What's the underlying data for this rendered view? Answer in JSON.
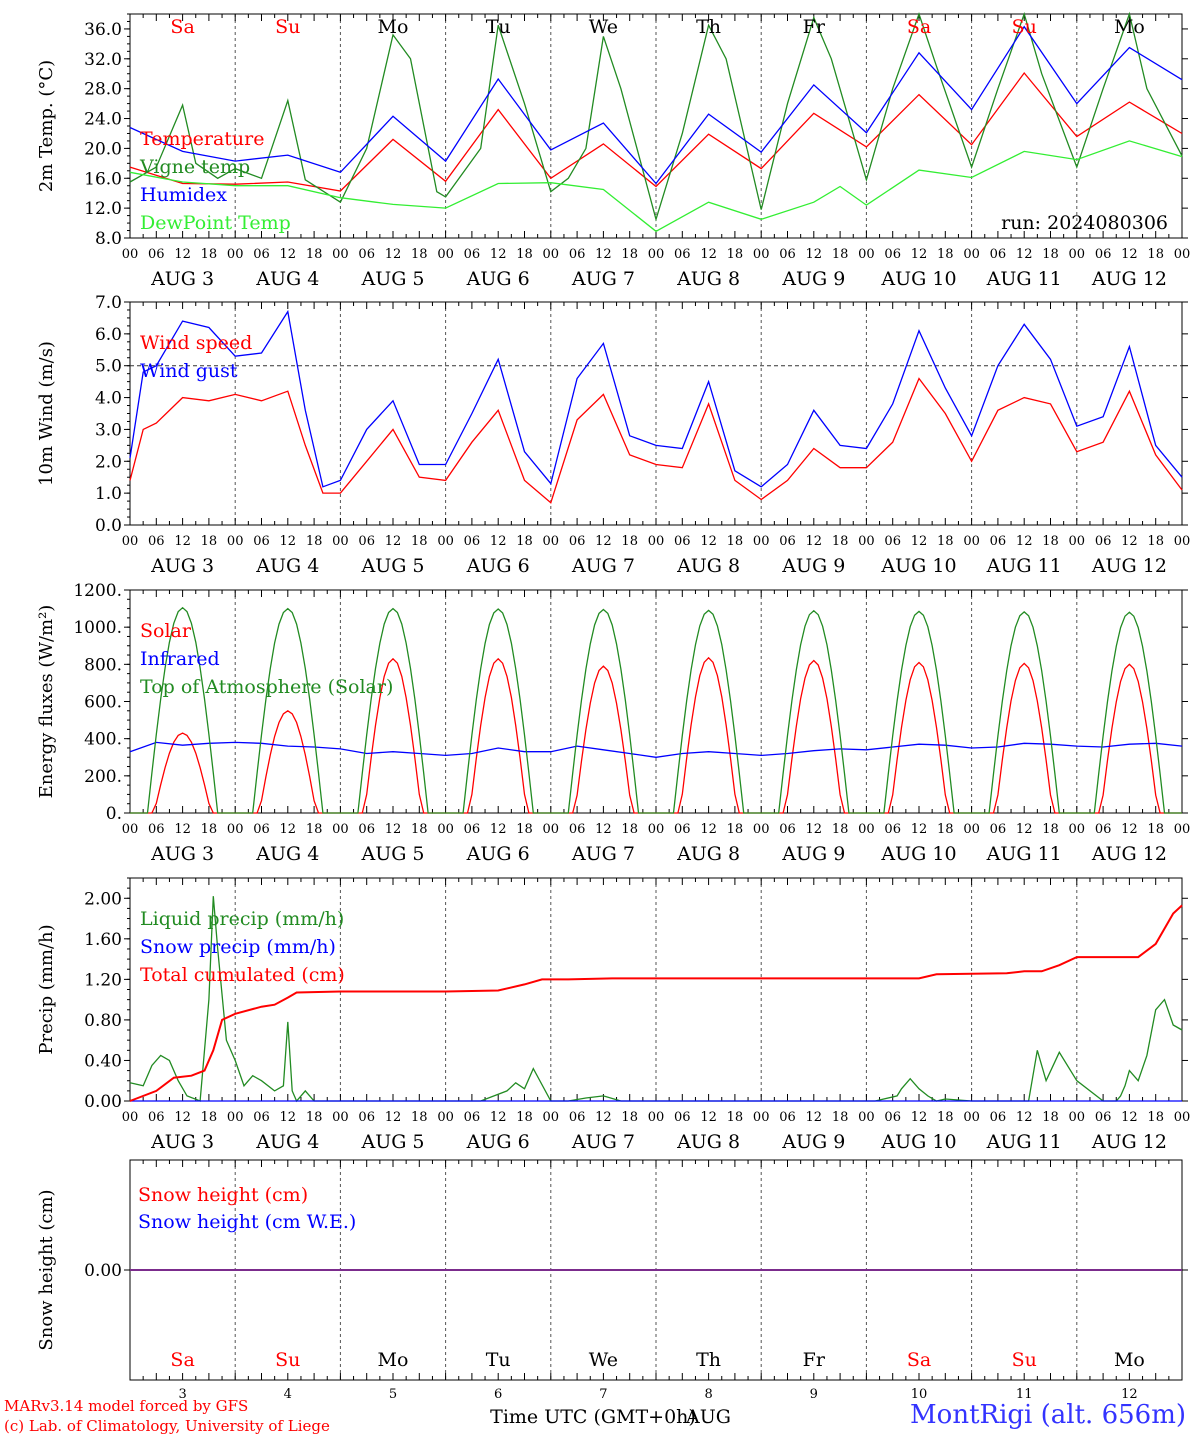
{
  "run_label": "run: 2024080306",
  "footer": {
    "model": "MARv3.14 model forced by GFS",
    "credit": "(c) Lab. of Climatology, University of Liege",
    "time_axis": "Time UTC (GMT+0h)",
    "month": "AUG",
    "station": "MontRigi (alt. 656m)"
  },
  "days": [
    {
      "weekday": "Sa",
      "date": "AUG  3",
      "num": "3",
      "weekend": true
    },
    {
      "weekday": "Su",
      "date": "AUG  4",
      "num": "4",
      "weekend": true
    },
    {
      "weekday": "Mo",
      "date": "AUG  5",
      "num": "5",
      "weekend": false
    },
    {
      "weekday": "Tu",
      "date": "AUG  6",
      "num": "6",
      "weekend": false
    },
    {
      "weekday": "We",
      "date": "AUG  7",
      "num": "7",
      "weekend": false
    },
    {
      "weekday": "Th",
      "date": "AUG  8",
      "num": "8",
      "weekend": false
    },
    {
      "weekday": "Fr",
      "date": "AUG  9",
      "num": "9",
      "weekend": false
    },
    {
      "weekday": "Sa",
      "date": "AUG 10",
      "num": "10",
      "weekend": true
    },
    {
      "weekday": "Su",
      "date": "AUG 11",
      "num": "11",
      "weekend": true
    },
    {
      "weekday": "Mo",
      "date": "AUG 12",
      "num": "12",
      "weekend": false
    }
  ],
  "hour_ticks": [
    "00",
    "06",
    "12",
    "18"
  ],
  "colors": {
    "red": "#ff0000",
    "green": "#228b22",
    "blue": "#0000ff",
    "lime": "#33ee33",
    "purple": "#7b2c8c",
    "weekday": "#000000"
  },
  "chart_data": [
    {
      "type": "line",
      "ylabel": "2m Temp. (°C)",
      "ylim": [
        8,
        38
      ],
      "yticks": [
        "8.0",
        "12.0",
        "16.0",
        "20.0",
        "24.0",
        "28.0",
        "32.0",
        "36.0"
      ],
      "x_unit": "hours since AUG 3 00 UTC",
      "series": [
        {
          "name": "Temperature",
          "color": "#ff0000",
          "x": [
            0,
            12,
            24,
            36,
            48,
            60,
            72,
            84,
            96,
            108,
            120,
            132,
            144,
            156,
            168,
            180,
            192,
            204,
            216,
            228,
            240
          ],
          "y": [
            17.5,
            15.3,
            15.2,
            15.5,
            14.3,
            21.2,
            15.6,
            25.2,
            16.0,
            20.6,
            14.9,
            21.9,
            17.3,
            24.7,
            20.2,
            27.2,
            20.5,
            30.1,
            21.6,
            26.2,
            22.0
          ]
        },
        {
          "name": "Vigne temp",
          "color": "#228b22",
          "x": [
            0,
            6,
            12,
            15,
            20,
            24,
            30,
            36,
            40,
            48,
            54,
            60,
            64,
            70,
            72,
            80,
            84,
            90,
            96,
            100,
            104,
            108,
            112,
            120,
            126,
            132,
            136,
            144,
            150,
            156,
            160,
            168,
            174,
            180,
            184,
            192,
            198,
            204,
            208,
            216,
            222,
            228,
            232,
            240
          ],
          "y": [
            15.5,
            17.5,
            25.8,
            18.0,
            16.0,
            17.3,
            16.0,
            26.4,
            15.8,
            12.8,
            20.0,
            35.2,
            32.0,
            14.2,
            13.5,
            20.0,
            36.5,
            26.0,
            14.2,
            16.0,
            20.0,
            35.0,
            28.0,
            10.5,
            22.0,
            36.5,
            32.0,
            11.8,
            26.0,
            37.5,
            32.0,
            15.8,
            28.0,
            38.0,
            31.0,
            17.5,
            28.0,
            38.0,
            30.0,
            17.5,
            28.0,
            38.5,
            28.0,
            19.0
          ]
        },
        {
          "name": "Humidex",
          "color": "#0000ff",
          "x": [
            0,
            12,
            24,
            36,
            48,
            60,
            72,
            84,
            96,
            108,
            120,
            132,
            144,
            156,
            168,
            180,
            192,
            204,
            216,
            228,
            240
          ],
          "y": [
            22.8,
            19.6,
            18.3,
            19.1,
            16.8,
            24.3,
            18.3,
            29.3,
            19.8,
            23.4,
            15.3,
            24.6,
            19.5,
            28.5,
            22.1,
            32.8,
            25.2,
            36.3,
            26.0,
            33.5,
            29.2
          ]
        },
        {
          "name": "DewPoint Temp",
          "color": "#33ee33",
          "x": [
            0,
            12,
            24,
            36,
            48,
            56,
            60,
            72,
            84,
            96,
            108,
            120,
            132,
            144,
            156,
            162,
            168,
            180,
            192,
            204,
            216,
            228,
            240
          ],
          "y": [
            16.8,
            15.5,
            15.0,
            15.0,
            13.4,
            12.8,
            12.5,
            12.0,
            15.3,
            15.4,
            14.5,
            8.9,
            12.8,
            10.5,
            12.8,
            14.9,
            12.4,
            17.1,
            16.1,
            19.6,
            18.5,
            21.0,
            18.9
          ]
        }
      ]
    },
    {
      "type": "line",
      "ylabel": "10m Wind (m/s)",
      "ylim": [
        0,
        7
      ],
      "yticks": [
        "0.0",
        "1.0",
        "2.0",
        "3.0",
        "4.0",
        "5.0",
        "6.0",
        "7.0"
      ],
      "reference_line": 5.0,
      "series": [
        {
          "name": "Wind speed",
          "color": "#ff0000",
          "x": [
            0,
            3,
            6,
            12,
            18,
            24,
            30,
            36,
            40,
            44,
            48,
            54,
            60,
            66,
            72,
            78,
            84,
            90,
            96,
            102,
            108,
            114,
            120,
            126,
            132,
            138,
            144,
            150,
            156,
            162,
            168,
            174,
            180,
            186,
            192,
            198,
            204,
            210,
            216,
            222,
            228,
            234,
            240
          ],
          "y": [
            1.4,
            3.0,
            3.2,
            4.0,
            3.9,
            4.1,
            3.9,
            4.2,
            2.5,
            1.0,
            1.0,
            2.0,
            3.0,
            1.5,
            1.4,
            2.6,
            3.6,
            1.4,
            0.7,
            3.3,
            4.1,
            2.2,
            1.9,
            1.8,
            3.8,
            1.4,
            0.8,
            1.4,
            2.4,
            1.8,
            1.8,
            2.6,
            4.6,
            3.5,
            2.0,
            3.6,
            4.0,
            3.8,
            2.3,
            2.6,
            4.2,
            2.2,
            1.1
          ]
        },
        {
          "name": "Wind gust",
          "color": "#0000ff",
          "x": [
            0,
            3,
            6,
            12,
            18,
            24,
            30,
            36,
            40,
            44,
            48,
            54,
            60,
            66,
            72,
            78,
            84,
            90,
            96,
            102,
            108,
            114,
            120,
            126,
            132,
            138,
            144,
            150,
            156,
            162,
            168,
            174,
            180,
            186,
            192,
            198,
            204,
            210,
            216,
            222,
            228,
            234,
            240
          ],
          "y": [
            2.1,
            4.8,
            5.0,
            6.4,
            6.2,
            5.3,
            5.4,
            6.7,
            3.6,
            1.2,
            1.4,
            3.0,
            3.9,
            1.9,
            1.9,
            3.5,
            5.2,
            2.3,
            1.3,
            4.6,
            5.7,
            2.8,
            2.5,
            2.4,
            4.5,
            1.7,
            1.2,
            1.9,
            3.6,
            2.5,
            2.4,
            3.8,
            6.1,
            4.3,
            2.8,
            5.0,
            6.3,
            5.2,
            3.1,
            3.4,
            5.6,
            2.5,
            1.5
          ]
        }
      ]
    },
    {
      "type": "line",
      "ylabel": "Energy fluxes (W/m²)",
      "ylim": [
        0,
        1200
      ],
      "yticks": [
        "0.",
        "200.",
        "400.",
        "600.",
        "800.",
        "1000.",
        "1200."
      ],
      "series": [
        {
          "name": "Solar",
          "color": "#ff0000",
          "peaks": [
            430,
            550,
            830,
            830,
            790,
            835,
            820,
            810,
            805,
            800
          ]
        },
        {
          "name": "Infrared",
          "color": "#0000ff",
          "x": [
            0,
            6,
            12,
            18,
            24,
            30,
            36,
            42,
            48,
            54,
            60,
            66,
            72,
            78,
            84,
            90,
            96,
            102,
            108,
            114,
            120,
            126,
            132,
            138,
            144,
            150,
            156,
            162,
            168,
            174,
            180,
            186,
            192,
            198,
            204,
            210,
            216,
            222,
            228,
            234,
            240
          ],
          "y": [
            330,
            380,
            365,
            375,
            380,
            375,
            360,
            355,
            345,
            320,
            330,
            320,
            310,
            320,
            350,
            330,
            330,
            360,
            340,
            320,
            300,
            320,
            330,
            320,
            310,
            320,
            335,
            345,
            340,
            355,
            370,
            365,
            350,
            355,
            375,
            370,
            360,
            355,
            370,
            375,
            360
          ]
        },
        {
          "name": "Top of Atmosphere (Solar)",
          "color": "#228b22",
          "peaks": [
            1105,
            1100,
            1100,
            1098,
            1095,
            1090,
            1088,
            1085,
            1082,
            1080
          ]
        }
      ]
    },
    {
      "type": "line",
      "ylabel": "Precip (mm/h)",
      "ylim": [
        0,
        2.2
      ],
      "yticks": [
        "0.00",
        "0.40",
        "0.80",
        "1.20",
        "1.60",
        "2.00"
      ],
      "series": [
        {
          "name": "Liquid precip (mm/h)",
          "color": "#228b22",
          "x": [
            0,
            3,
            5,
            7,
            9,
            11,
            13,
            16,
            18,
            19,
            20,
            22,
            24,
            26,
            28,
            30,
            33,
            35,
            36,
            37,
            38,
            40,
            42,
            44,
            46,
            48,
            60,
            80,
            86,
            88,
            90,
            92,
            96,
            100,
            104,
            108,
            112,
            120,
            150,
            170,
            175,
            176,
            178,
            180,
            182,
            184,
            186,
            192,
            200,
            205,
            207,
            209,
            212,
            216,
            222,
            225,
            226,
            227,
            228,
            230,
            232,
            234,
            236,
            238,
            240
          ],
          "y": [
            0.18,
            0.15,
            0.35,
            0.45,
            0.4,
            0.2,
            0.05,
            0.0,
            1.0,
            2.02,
            1.5,
            0.6,
            0.4,
            0.15,
            0.25,
            0.2,
            0.1,
            0.15,
            0.78,
            0.1,
            0.0,
            0.1,
            0.0,
            0.0,
            0.0,
            0.0,
            0.0,
            0.0,
            0.1,
            0.18,
            0.12,
            0.32,
            0.0,
            0.0,
            0.03,
            0.05,
            0.0,
            0.0,
            0.0,
            0.0,
            0.05,
            0.12,
            0.22,
            0.12,
            0.05,
            0.0,
            0.02,
            0.0,
            0.0,
            0.0,
            0.5,
            0.2,
            0.48,
            0.2,
            0.0,
            0.0,
            0.05,
            0.15,
            0.3,
            0.2,
            0.45,
            0.9,
            1.0,
            0.75,
            0.7
          ]
        },
        {
          "name": "Snow precip (mm/h)",
          "color": "#0000ff",
          "x": [
            0,
            240
          ],
          "y": [
            0,
            0
          ]
        },
        {
          "name": "Total cumulated (cm)",
          "color": "#ff0000",
          "x": [
            0,
            6,
            10,
            14,
            17,
            19,
            21,
            24,
            30,
            33,
            36,
            38,
            48,
            72,
            84,
            90,
            94,
            100,
            110,
            120,
            144,
            168,
            180,
            184,
            200,
            204,
            208,
            212,
            216,
            230,
            234,
            238,
            240
          ],
          "y": [
            0.0,
            0.1,
            0.23,
            0.25,
            0.3,
            0.5,
            0.8,
            0.86,
            0.93,
            0.95,
            1.02,
            1.07,
            1.08,
            1.08,
            1.09,
            1.15,
            1.2,
            1.2,
            1.21,
            1.21,
            1.21,
            1.21,
            1.21,
            1.25,
            1.26,
            1.28,
            1.28,
            1.34,
            1.42,
            1.42,
            1.55,
            1.85,
            1.93
          ]
        }
      ]
    },
    {
      "type": "line",
      "ylabel": "Snow height (cm)",
      "ylim": [
        -1,
        1
      ],
      "yticks": [
        "0.00"
      ],
      "series": [
        {
          "name": "Snow height (cm)",
          "color": "#ff0000",
          "x": [
            0,
            240
          ],
          "y": [
            0,
            0
          ]
        },
        {
          "name": "Snow height (cm W.E.)",
          "color": "#0000ff",
          "x": [
            0,
            240
          ],
          "y": [
            0,
            0
          ]
        }
      ]
    }
  ]
}
